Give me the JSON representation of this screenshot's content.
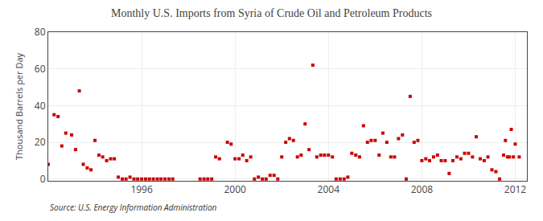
{
  "chart_data": {
    "type": "scatter",
    "title": "Monthly U.S. Imports from Syria of Crude Oil and Petroleum Products",
    "ylabel": "Thousand Barrels per Day",
    "source": "Source: U.S. Energy Information Administration",
    "color": "#cc0000",
    "marker": "square",
    "grid": true,
    "xlim": [
      1992.0,
      2012.5
    ],
    "ylim": [
      -1,
      80
    ],
    "xticks": [
      1996,
      2000,
      2004,
      2008,
      2012
    ],
    "yticks": [
      0,
      20,
      40,
      60,
      80
    ],
    "x": [
      1992.0,
      1992.25,
      1992.42,
      1992.58,
      1992.75,
      1993.0,
      1993.17,
      1993.33,
      1993.5,
      1993.67,
      1993.83,
      1994.0,
      1994.17,
      1994.33,
      1994.5,
      1994.67,
      1994.83,
      1995.0,
      1995.17,
      1995.33,
      1995.5,
      1995.67,
      1995.83,
      1996.0,
      1996.17,
      1996.33,
      1996.5,
      1996.67,
      1996.83,
      1997.0,
      1997.17,
      1997.33,
      1998.5,
      1998.67,
      1998.83,
      1999.0,
      1999.17,
      1999.33,
      1999.67,
      1999.83,
      2000.0,
      2000.17,
      2000.33,
      2000.5,
      2000.67,
      2000.83,
      2001.0,
      2001.17,
      2001.33,
      2001.5,
      2001.67,
      2001.83,
      2002.0,
      2002.17,
      2002.33,
      2002.5,
      2002.67,
      2002.83,
      2003.0,
      2003.17,
      2003.33,
      2003.5,
      2003.67,
      2003.83,
      2004.0,
      2004.17,
      2004.33,
      2004.5,
      2004.67,
      2004.83,
      2005.0,
      2005.17,
      2005.33,
      2005.5,
      2005.67,
      2005.83,
      2006.0,
      2006.17,
      2006.33,
      2006.5,
      2006.67,
      2006.83,
      2007.0,
      2007.17,
      2007.33,
      2007.5,
      2007.67,
      2007.83,
      2008.0,
      2008.17,
      2008.33,
      2008.5,
      2008.67,
      2008.83,
      2009.0,
      2009.17,
      2009.33,
      2009.5,
      2009.67,
      2009.83,
      2010.0,
      2010.17,
      2010.33,
      2010.5,
      2010.67,
      2010.83,
      2011.0,
      2011.17,
      2011.33,
      2011.5,
      2011.58,
      2011.67,
      2011.75,
      2011.83,
      2011.92,
      2012.0,
      2012.17
    ],
    "values": [
      8,
      35,
      34,
      18,
      25,
      24,
      16,
      48,
      8,
      6,
      5,
      21,
      13,
      12,
      10,
      11,
      11,
      1,
      0,
      0,
      1,
      0,
      0,
      0,
      0,
      0,
      0,
      0,
      0,
      0,
      0,
      0,
      0,
      0,
      0,
      0,
      12,
      11,
      20,
      19,
      11,
      11,
      13,
      10,
      12,
      0,
      1,
      0,
      0,
      2,
      2,
      0,
      12,
      20,
      22,
      21,
      12,
      13,
      30,
      16,
      62,
      12,
      13,
      13,
      13,
      12,
      0,
      0,
      0,
      1,
      14,
      13,
      12,
      29,
      20,
      21,
      21,
      13,
      25,
      20,
      12,
      12,
      22,
      24,
      0,
      45,
      20,
      21,
      10,
      11,
      10,
      12,
      13,
      10,
      10,
      3,
      10,
      12,
      11,
      14,
      14,
      12,
      23,
      11,
      10,
      12,
      5,
      4,
      0,
      13,
      21,
      12,
      12,
      27,
      12,
      19,
      12
    ]
  }
}
